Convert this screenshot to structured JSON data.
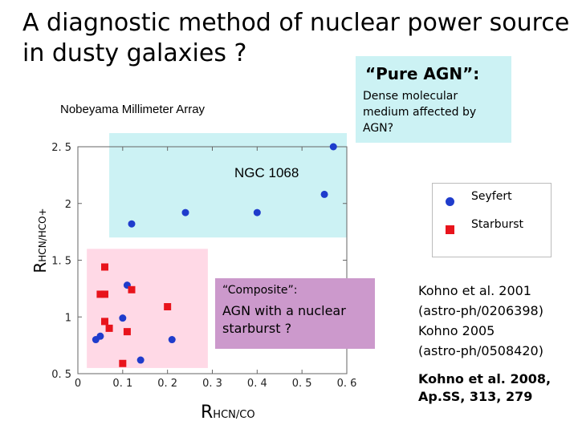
{
  "slide": {
    "title_line1": "A diagnostic method of nuclear power source",
    "title_line2": "in dusty galaxies ?",
    "pure_agn_title": "“Pure AGN”:",
    "pure_agn_desc": "Dense molecular medium affected by AGN?",
    "instrument": "Nobeyama Millimeter Array",
    "ngc_label": "NGC 1068",
    "composite_title": "“Composite”:",
    "composite_desc": "AGN with a nuclear starburst ?",
    "refs": [
      "Kohno et al. 2001",
      "(astro-ph/0206398)",
      "Kohno 2005",
      "(astro-ph/0508420)"
    ],
    "ref_bold": [
      "Kohno et al. 2008,",
      "Ap.SS, 313, 279"
    ],
    "colors": {
      "pure_region": "#ccf2f4",
      "composite_region": "#ffd9e6",
      "composite_box": "#cc99cc",
      "seyfert": "#1f3ccc",
      "starburst": "#e8141c"
    }
  },
  "chart_data": {
    "type": "scatter",
    "xlabel_main": "R",
    "xlabel_sub": "HCN/CO",
    "ylabel_main": "R",
    "ylabel_sub": "HCN/HCO+",
    "xlim": [
      0,
      0.6
    ],
    "ylim": [
      0.5,
      2.5
    ],
    "x_ticks": [
      {
        "value": 0,
        "label": "0"
      },
      {
        "value": 0.1,
        "label": "0. 1"
      },
      {
        "value": 0.2,
        "label": "0. 2"
      },
      {
        "value": 0.3,
        "label": "0. 3"
      },
      {
        "value": 0.4,
        "label": "0. 4"
      },
      {
        "value": 0.5,
        "label": "0. 5"
      },
      {
        "value": 0.6,
        "label": "0. 6"
      }
    ],
    "y_ticks": [
      {
        "value": 0.5,
        "label": "0. 5"
      },
      {
        "value": 1,
        "label": "1"
      },
      {
        "value": 1.5,
        "label": "1. 5"
      },
      {
        "value": 2,
        "label": "2"
      },
      {
        "value": 2.5,
        "label": "2. 5"
      }
    ],
    "regions": [
      {
        "name": "pure-agn-region",
        "x": [
          0.07,
          0.6
        ],
        "y": [
          1.7,
          2.62
        ]
      },
      {
        "name": "composite-region",
        "x": [
          0.02,
          0.29
        ],
        "y": [
          0.55,
          1.6
        ]
      }
    ],
    "legend": [
      {
        "label": "Seyfert",
        "marker": "circle"
      },
      {
        "label": "Starburst",
        "marker": "square"
      }
    ],
    "series": [
      {
        "name": "Seyfert",
        "marker": "circle",
        "points": [
          {
            "x": 0.57,
            "y": 2.5
          },
          {
            "x": 0.55,
            "y": 2.08
          },
          {
            "x": 0.12,
            "y": 1.82
          },
          {
            "x": 0.24,
            "y": 1.92
          },
          {
            "x": 0.4,
            "y": 1.92
          },
          {
            "x": 0.11,
            "y": 1.28
          },
          {
            "x": 0.1,
            "y": 0.99
          },
          {
            "x": 0.05,
            "y": 0.83
          },
          {
            "x": 0.04,
            "y": 0.8
          },
          {
            "x": 0.21,
            "y": 0.8
          },
          {
            "x": 0.14,
            "y": 0.62
          }
        ]
      },
      {
        "name": "Starburst",
        "marker": "square",
        "points": [
          {
            "x": 0.06,
            "y": 1.44
          },
          {
            "x": 0.12,
            "y": 1.24
          },
          {
            "x": 0.05,
            "y": 1.2
          },
          {
            "x": 0.06,
            "y": 1.2
          },
          {
            "x": 0.2,
            "y": 1.09
          },
          {
            "x": 0.06,
            "y": 0.96
          },
          {
            "x": 0.11,
            "y": 0.87
          },
          {
            "x": 0.07,
            "y": 0.9
          },
          {
            "x": 0.1,
            "y": 0.59
          }
        ]
      }
    ]
  }
}
